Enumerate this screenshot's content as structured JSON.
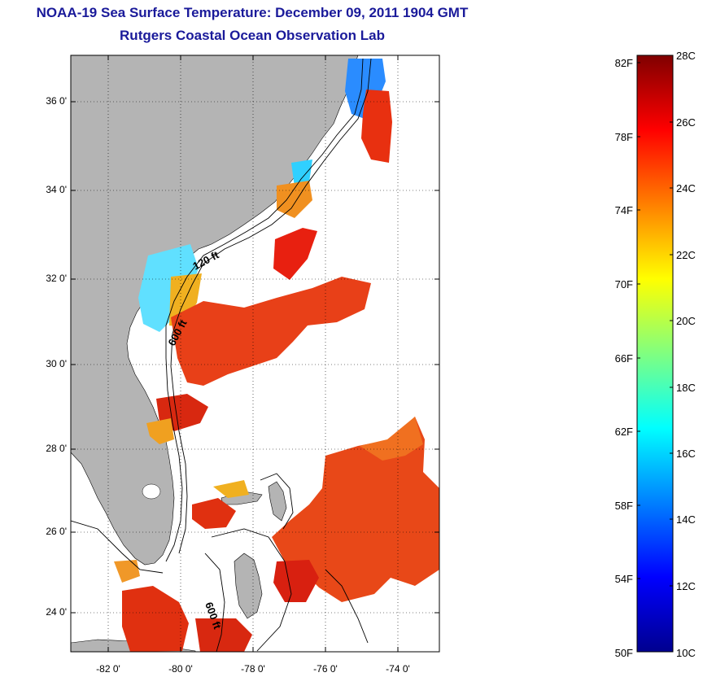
{
  "title": "NOAA-19 Sea Surface Temperature:  December 09, 2011 1904 GMT",
  "subtitle": "Rutgers Coastal Ocean Observation Lab",
  "map": {
    "lat_labels": [
      "36 0'",
      "34 0'",
      "32 0'",
      "30 0'",
      "28 0'",
      "26 0'",
      "24 0'"
    ],
    "lon_labels": [
      "-82 0'",
      "-80 0'",
      "-78 0'",
      "-76 0'",
      "-74 0'"
    ],
    "isobath_labels": [
      "120 ft",
      "600 ft",
      "600 ft"
    ],
    "colors": {
      "land": "#b4b4b4",
      "ocean_nodata": "#ffffff",
      "contour": "#000000"
    }
  },
  "colorbar": {
    "fahrenheit_labels": [
      "82F",
      "78F",
      "74F",
      "70F",
      "66F",
      "62F",
      "58F",
      "54F",
      "50F"
    ],
    "celsius_labels": [
      "28C",
      "26C",
      "24C",
      "22C",
      "20C",
      "18C",
      "16C",
      "14C",
      "12C",
      "10C"
    ],
    "colormap": "jet",
    "min_c": 10,
    "max_c": 28
  }
}
